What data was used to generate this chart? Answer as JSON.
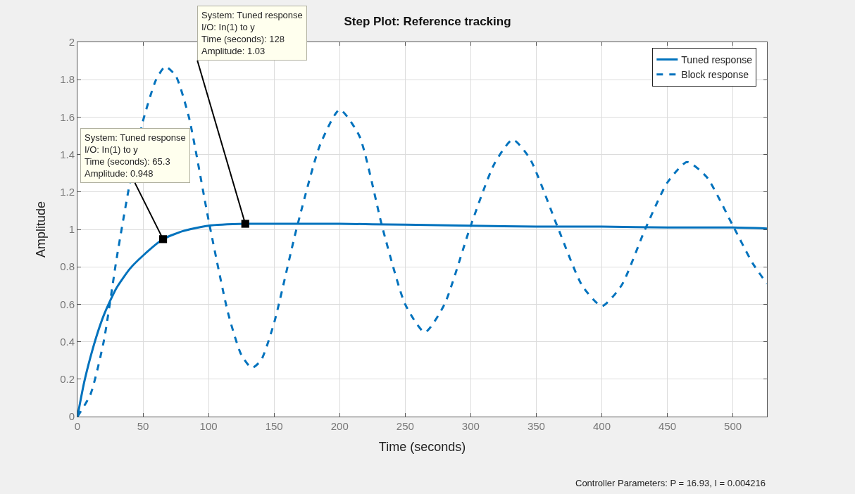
{
  "chart_data": {
    "type": "line",
    "title": "Step Plot: Reference tracking",
    "xlabel": "Time (seconds)",
    "ylabel": "Amplitude",
    "xlim": [
      0,
      526
    ],
    "xticks": [
      0,
      50,
      100,
      150,
      200,
      250,
      300,
      350,
      400,
      450,
      500
    ],
    "ylim": [
      0,
      2
    ],
    "yticks": [
      0,
      0.2,
      0.4,
      0.6,
      0.8,
      1,
      1.2,
      1.4,
      1.6,
      1.8,
      2
    ],
    "grid": true,
    "legend": "top right",
    "series": [
      {
        "name": "Tuned response",
        "color": "#0072bd",
        "line_style": "solid",
        "x": [
          0,
          5,
          10,
          15,
          20,
          25,
          30,
          40,
          50,
          65.3,
          80,
          100,
          128,
          150,
          200,
          250,
          300,
          350,
          400,
          450,
          500,
          526
        ],
        "values": [
          0,
          0.18,
          0.32,
          0.44,
          0.54,
          0.62,
          0.69,
          0.79,
          0.86,
          0.948,
          0.99,
          1.02,
          1.03,
          1.03,
          1.03,
          1.025,
          1.02,
          1.015,
          1.015,
          1.01,
          1.01,
          1.005
        ]
      },
      {
        "name": "Block response",
        "color": "#0072bd",
        "line_style": "dashed",
        "x": [
          0,
          10,
          20,
          30,
          40,
          50,
          60,
          67,
          75,
          85,
          100,
          115,
          125,
          133,
          140,
          150,
          167,
          185,
          200,
          215,
          233,
          250,
          265,
          280,
          300,
          318,
          332,
          345,
          367,
          385,
          400,
          415,
          433,
          450,
          465,
          480,
          500,
          515,
          526
        ],
        "values": [
          0,
          0.12,
          0.4,
          0.85,
          1.25,
          1.58,
          1.8,
          1.87,
          1.82,
          1.6,
          1.05,
          0.55,
          0.33,
          0.26,
          0.3,
          0.5,
          1.0,
          1.45,
          1.64,
          1.5,
          1.0,
          0.6,
          0.45,
          0.6,
          1.02,
          1.35,
          1.48,
          1.38,
          1.0,
          0.7,
          0.59,
          0.7,
          1.0,
          1.25,
          1.36,
          1.28,
          1.02,
          0.82,
          0.71
        ]
      }
    ],
    "annotations": [
      {
        "text": "System: Tuned response\nI/O: In(1) to y\nTime (seconds): 65.3\nAmplitude: 0.948",
        "x": 65.3,
        "y": 0.948
      },
      {
        "text": "System: Tuned response\nI/O: In(1) to y\nTime (seconds): 128\nAmplitude: 1.03",
        "x": 128,
        "y": 1.03
      },
      "Controller Parameters: P = 16.93, I = 0.004216"
    ]
  }
}
